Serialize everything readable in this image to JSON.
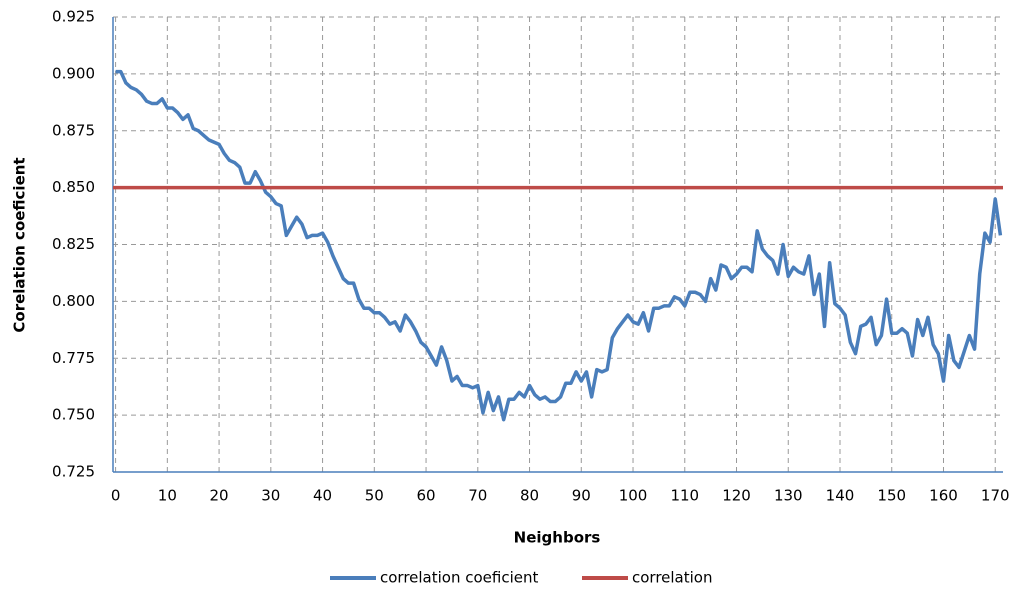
{
  "chart_data": {
    "type": "line",
    "x_label": "Neighbors",
    "y_label": "Corelation coeficient",
    "x": [
      0,
      1,
      2,
      3,
      4,
      5,
      6,
      7,
      8,
      9,
      10,
      11,
      12,
      13,
      14,
      15,
      16,
      17,
      18,
      19,
      20,
      21,
      22,
      23,
      24,
      25,
      26,
      27,
      28,
      29,
      30,
      31,
      32,
      33,
      34,
      35,
      36,
      37,
      38,
      39,
      40,
      41,
      42,
      43,
      44,
      45,
      46,
      47,
      48,
      49,
      50,
      51,
      52,
      53,
      54,
      55,
      56,
      57,
      58,
      59,
      60,
      61,
      62,
      63,
      64,
      65,
      66,
      67,
      68,
      69,
      70,
      71,
      72,
      73,
      74,
      75,
      76,
      77,
      78,
      79,
      80,
      81,
      82,
      83,
      84,
      85,
      86,
      87,
      88,
      89,
      90,
      91,
      92,
      93,
      94,
      95,
      96,
      97,
      98,
      99,
      100,
      101,
      102,
      103,
      104,
      105,
      106,
      107,
      108,
      109,
      110,
      111,
      112,
      113,
      114,
      115,
      116,
      117,
      118,
      119,
      120,
      121,
      122,
      123,
      124,
      125,
      126,
      127,
      128,
      129,
      130,
      131,
      132,
      133,
      134,
      135,
      136,
      137,
      138,
      139,
      140,
      141,
      142,
      143,
      144,
      145,
      146,
      147,
      148,
      149,
      150,
      151,
      152,
      153,
      154,
      155,
      156,
      157,
      158,
      159,
      160,
      161,
      162,
      163,
      164,
      165,
      166,
      167,
      168,
      169,
      170,
      171
    ],
    "series": [
      {
        "name": "correlation coeficient",
        "color": "#4a7ebb",
        "values": [
          0.901,
          0.901,
          0.896,
          0.894,
          0.893,
          0.891,
          0.888,
          0.887,
          0.887,
          0.889,
          0.885,
          0.885,
          0.883,
          0.88,
          0.882,
          0.876,
          0.875,
          0.873,
          0.871,
          0.87,
          0.869,
          0.865,
          0.862,
          0.861,
          0.859,
          0.852,
          0.852,
          0.857,
          0.853,
          0.848,
          0.846,
          0.843,
          0.842,
          0.829,
          0.833,
          0.837,
          0.834,
          0.828,
          0.829,
          0.829,
          0.83,
          0.826,
          0.82,
          0.815,
          0.81,
          0.808,
          0.808,
          0.801,
          0.797,
          0.797,
          0.795,
          0.795,
          0.793,
          0.79,
          0.791,
          0.787,
          0.794,
          0.791,
          0.787,
          0.782,
          0.78,
          0.776,
          0.772,
          0.78,
          0.774,
          0.765,
          0.767,
          0.763,
          0.763,
          0.762,
          0.763,
          0.751,
          0.76,
          0.752,
          0.758,
          0.748,
          0.757,
          0.757,
          0.76,
          0.758,
          0.763,
          0.759,
          0.757,
          0.758,
          0.756,
          0.756,
          0.758,
          0.764,
          0.764,
          0.769,
          0.765,
          0.769,
          0.758,
          0.77,
          0.769,
          0.77,
          0.784,
          0.788,
          0.791,
          0.794,
          0.791,
          0.79,
          0.795,
          0.787,
          0.797,
          0.797,
          0.798,
          0.798,
          0.802,
          0.801,
          0.798,
          0.804,
          0.804,
          0.803,
          0.8,
          0.81,
          0.805,
          0.816,
          0.815,
          0.81,
          0.812,
          0.815,
          0.815,
          0.813,
          0.831,
          0.823,
          0.82,
          0.818,
          0.812,
          0.825,
          0.811,
          0.815,
          0.813,
          0.812,
          0.82,
          0.803,
          0.812,
          0.789,
          0.817,
          0.799,
          0.797,
          0.794,
          0.782,
          0.777,
          0.789,
          0.79,
          0.793,
          0.781,
          0.785,
          0.801,
          0.786,
          0.786,
          0.788,
          0.786,
          0.776,
          0.792,
          0.785,
          0.793,
          0.781,
          0.777,
          0.765,
          0.785,
          0.774,
          0.771,
          0.778,
          0.785,
          0.779,
          0.812,
          0.83,
          0.826,
          0.845,
          0.829
        ]
      },
      {
        "name": "correlation",
        "color": "#be4b48",
        "value": 0.85
      }
    ],
    "xlim": [
      -0.5,
      171.5
    ],
    "xticks": [
      0,
      10,
      20,
      30,
      40,
      50,
      60,
      70,
      80,
      90,
      100,
      110,
      120,
      130,
      140,
      150,
      160,
      170
    ],
    "ylim": [
      0.725,
      0.925
    ],
    "yticks": [
      {
        "value": 0.725,
        "label": "0.725"
      },
      {
        "value": 0.75,
        "label": "0.750"
      },
      {
        "value": 0.775,
        "label": "0.775"
      },
      {
        "value": 0.8,
        "label": "0.800"
      },
      {
        "value": 0.825,
        "label": "0.825"
      },
      {
        "value": 0.85,
        "label": "0.850"
      },
      {
        "value": 0.875,
        "label": "0.875"
      },
      {
        "value": 0.9,
        "label": "0.900"
      },
      {
        "value": 0.925,
        "label": "0.925"
      }
    ],
    "grid": true
  }
}
